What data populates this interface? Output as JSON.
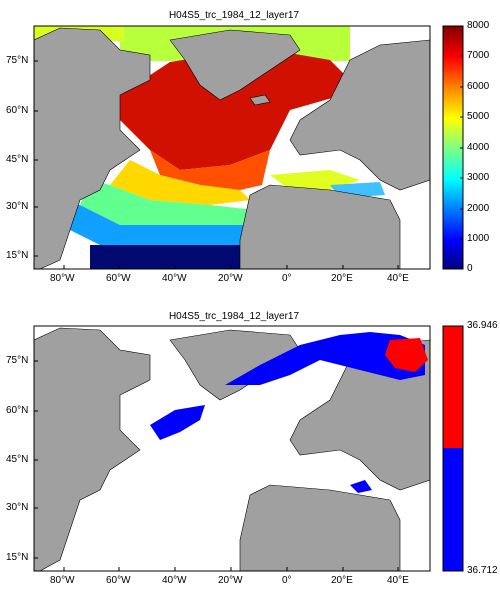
{
  "panels": [
    {
      "title": "H04S5_trc_1984_12_layer17",
      "lat_labels": [
        "75°N",
        "60°N",
        "45°N",
        "30°N",
        "15°N"
      ],
      "lon_labels": [
        "80°W",
        "60°W",
        "40°W",
        "20°W",
        "0°",
        "20°E",
        "40°E"
      ],
      "colorbar_ticks": [
        "8000",
        "7000",
        "6000",
        "5000",
        "4000",
        "3000",
        "2000",
        "1000",
        "0"
      ],
      "colorbar_min": 0,
      "colorbar_max": 8000,
      "colormap": "jet",
      "colors": {
        "land": "#a0a0a0",
        "ocean_nodata": "#ffffff"
      }
    },
    {
      "title": "H04S5_trc_1984_12_layer17",
      "lat_labels": [
        "75°N",
        "60°N",
        "45°N",
        "30°N",
        "15°N"
      ],
      "lon_labels": [
        "80°W",
        "60°W",
        "40°W",
        "20°W",
        "0°",
        "20°E",
        "40°E"
      ],
      "colorbar_ticks": [
        "36.946",
        "36.712"
      ],
      "colorbar_min": 36.712,
      "colorbar_max": 36.946,
      "colormap": "two-color",
      "colors": {
        "high": "#ff0000",
        "low": "#0000ff",
        "land": "#a0a0a0",
        "ocean_nodata": "#ffffff"
      }
    }
  ]
}
